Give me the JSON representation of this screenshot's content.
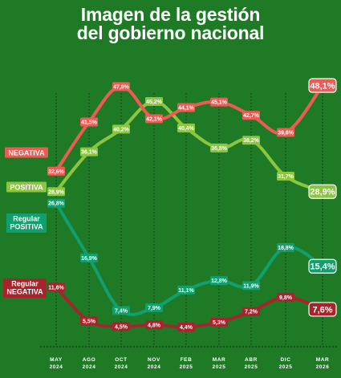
{
  "title": {
    "line1": "Imagen de la gestión",
    "line2": "del gobierno nacional"
  },
  "colors": {
    "background": "#1f7a26",
    "negativa": "#ee5a54",
    "positiva": "#8cc63f",
    "regular_positiva": "#0fa06e",
    "regular_negativa": "#a8242c",
    "grid": "#0d2f10",
    "text": "#ffffff"
  },
  "chart_data": {
    "type": "line",
    "title": "Imagen de la gestión del gobierno nacional",
    "x": [
      [
        "MAY",
        "2024"
      ],
      [
        "AGO",
        "2024"
      ],
      [
        "OCT",
        "2024"
      ],
      [
        "NOV",
        "2024"
      ],
      [
        "FEB",
        "2025"
      ],
      [
        "MAR",
        "2025"
      ],
      [
        "ABR",
        "2025"
      ],
      [
        "DIC",
        "2025"
      ],
      [
        "MAR",
        "2026"
      ]
    ],
    "ylim": [
      0,
      52
    ],
    "grid": "vertical dotted",
    "series": [
      {
        "name": "NEGATIVA",
        "key": "negativa",
        "values": [
          32.6,
          41.5,
          47.9,
          42.1,
          44.1,
          45.1,
          42.7,
          39.6,
          48.1
        ],
        "labels": [
          "32,6%",
          "41,5%",
          "47,9%",
          "42,1%",
          "44,1%",
          "45,1%",
          "42,7%",
          "39,6%",
          "48,1%"
        ]
      },
      {
        "name": "POSITIVA",
        "key": "positiva",
        "values": [
          28.9,
          36.1,
          40.2,
          45.2,
          40.4,
          36.8,
          38.2,
          31.7,
          28.9
        ],
        "labels": [
          "28,9%",
          "36,1%",
          "40,2%",
          "45,2%",
          "40,4%",
          "36,8%",
          "38,2%",
          "31,7%",
          "28,9%"
        ]
      },
      {
        "name": "Regular POSITIVA",
        "key": "regular_positiva",
        "values": [
          26.8,
          16.9,
          7.4,
          7.9,
          11.1,
          12.8,
          11.9,
          18.8,
          15.4
        ],
        "labels": [
          "26,8%",
          "16,9%",
          "7,4%",
          "7,9%",
          "11,1%",
          "12,8%",
          "11,9%",
          "18,8%",
          "15,4%"
        ]
      },
      {
        "name": "Regular NEGATIVA",
        "key": "regular_negativa",
        "values": [
          11.6,
          5.5,
          4.5,
          4.8,
          4.4,
          5.3,
          7.2,
          9.8,
          7.6
        ],
        "labels": [
          "11,6%",
          "5,5%",
          "4,5%",
          "4,8%",
          "4,4%",
          "5,3%",
          "7,2%",
          "9,8%",
          "7,6%"
        ]
      }
    ],
    "legend": [
      {
        "key": "negativa",
        "lines": [
          "NEGATIVA"
        ]
      },
      {
        "key": "positiva",
        "lines": [
          "POSITIVA"
        ]
      },
      {
        "key": "regular_positiva",
        "lines": [
          "Regular",
          "POSITIVA"
        ]
      },
      {
        "key": "regular_negativa",
        "lines": [
          "Regular",
          "NEGATIVA"
        ]
      }
    ]
  }
}
